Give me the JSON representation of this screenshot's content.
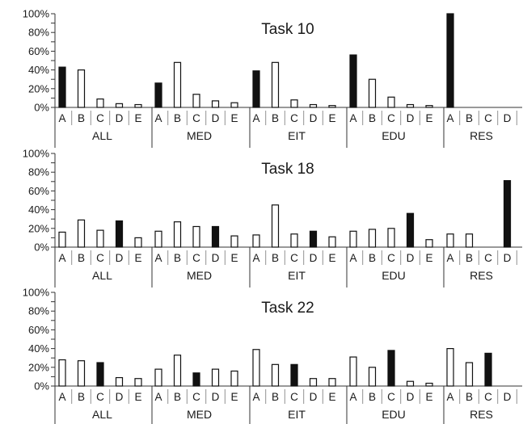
{
  "chart_data": [
    {
      "type": "bar",
      "title": "Task 10",
      "groups": [
        "ALL",
        "MED",
        "EIT",
        "EDU",
        "RES"
      ],
      "categories": [
        "A",
        "B",
        "C",
        "D",
        "E"
      ],
      "ylim": [
        0,
        100
      ],
      "yticks": [
        "0%",
        "20%",
        "40%",
        "60%",
        "80%",
        "100%"
      ],
      "values": {
        "ALL": [
          43,
          40,
          9,
          4,
          3
        ],
        "MED": [
          26,
          48,
          14,
          7,
          5
        ],
        "EIT": [
          39,
          48,
          8,
          3,
          2
        ],
        "EDU": [
          56,
          30,
          11,
          3,
          2
        ],
        "RES": [
          100,
          0,
          0,
          0,
          0
        ]
      },
      "highlight": "A",
      "grid": false
    },
    {
      "type": "bar",
      "title": "Task 18",
      "groups": [
        "ALL",
        "MED",
        "EIT",
        "EDU",
        "RES"
      ],
      "categories": [
        "A",
        "B",
        "C",
        "D",
        "E"
      ],
      "ylim": [
        0,
        100
      ],
      "yticks": [
        "0%",
        "20%",
        "40%",
        "60%",
        "80%",
        "100%"
      ],
      "values": {
        "ALL": [
          16,
          29,
          18,
          28,
          10
        ],
        "MED": [
          17,
          27,
          22,
          22,
          12
        ],
        "EIT": [
          13,
          45,
          14,
          17,
          11
        ],
        "EDU": [
          17,
          19,
          20,
          36,
          8
        ],
        "RES": [
          14,
          14,
          0,
          71,
          0
        ]
      },
      "highlight": "D",
      "grid": false
    },
    {
      "type": "bar",
      "title": "Task 22",
      "groups": [
        "ALL",
        "MED",
        "EIT",
        "EDU",
        "RES"
      ],
      "categories": [
        "A",
        "B",
        "C",
        "D",
        "E"
      ],
      "ylim": [
        0,
        100
      ],
      "yticks": [
        "0%",
        "20%",
        "40%",
        "60%",
        "80%",
        "100%"
      ],
      "values": {
        "ALL": [
          28,
          27,
          25,
          9,
          8
        ],
        "MED": [
          18,
          33,
          14,
          18,
          16
        ],
        "EIT": [
          39,
          23,
          23,
          8,
          8
        ],
        "EDU": [
          31,
          20,
          38,
          5,
          3
        ],
        "RES": [
          40,
          25,
          35,
          0,
          0
        ]
      },
      "highlight": "C",
      "grid": false
    }
  ],
  "colors": {
    "highlight_fill": "#111111",
    "normal_fill": "#ffffff",
    "stroke": "#111111"
  }
}
